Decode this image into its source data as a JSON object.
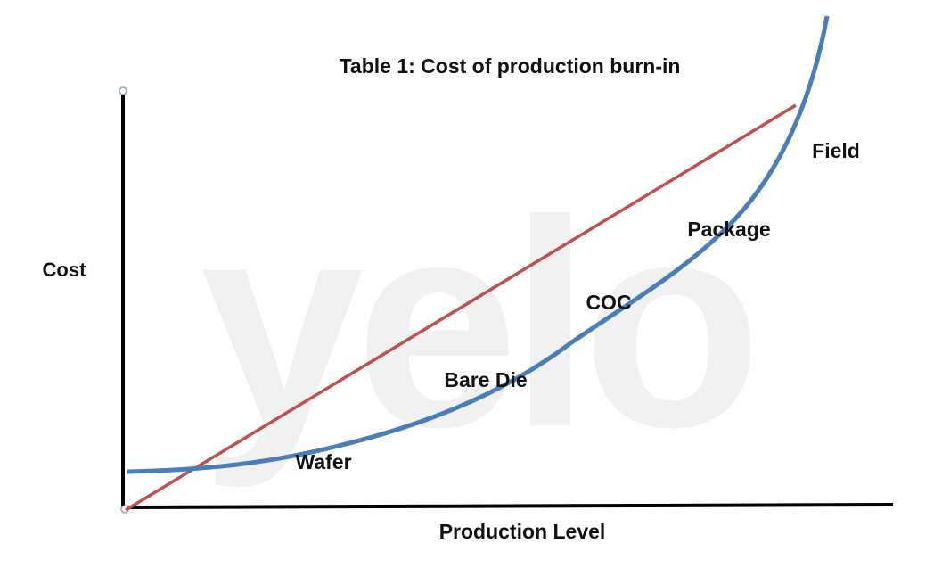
{
  "title": "Table 1: Cost of production burn-in",
  "watermark": "yelo",
  "axes": {
    "x_label": "Production Level",
    "y_label": "Cost"
  },
  "stages": [
    {
      "label": "Wafer"
    },
    {
      "label": "Bare Die"
    },
    {
      "label": "COC"
    },
    {
      "label": "Package"
    },
    {
      "label": "Field"
    }
  ]
}
